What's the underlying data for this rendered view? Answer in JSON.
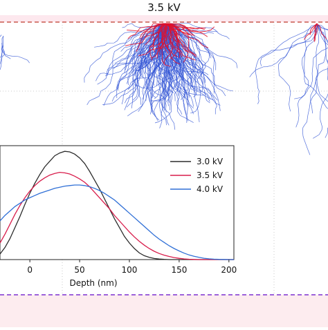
{
  "figure": {
    "voltage_title": "3.5 kV",
    "colors": {
      "background": "#ffffff",
      "top_band": "#fde8ee",
      "bottom_band": "#fdecef",
      "dashed_red": "#c0392b",
      "dashed_purple": "#7b2fd0",
      "grid": "#c8c8c8",
      "trajectory_blue": "#3557d6",
      "trajectory_red": "#e0102c"
    },
    "trajectory_panels": [
      "left-partial",
      "center",
      "right"
    ]
  },
  "chart_data": {
    "type": "line",
    "title": "",
    "xlabel": "Depth (nm)",
    "ylabel": "",
    "xlim": [
      -30,
      205
    ],
    "ylim": [
      0,
      1.0
    ],
    "xticks": [
      0,
      50,
      100,
      150,
      200
    ],
    "xtick_labels": [
      "0",
      "50",
      "100",
      "150",
      "200"
    ],
    "legend_position": "top-right",
    "series": [
      {
        "name": "3.0 kV",
        "color": "#2b2b2b",
        "x": [
          -30,
          -25,
          -20,
          -15,
          -10,
          -5,
          0,
          5,
          10,
          15,
          20,
          25,
          30,
          35,
          40,
          45,
          50,
          55,
          60,
          65,
          70,
          75,
          80,
          85,
          90,
          95,
          100,
          105,
          110,
          115,
          120,
          125,
          130,
          135,
          140,
          145,
          150,
          155,
          160,
          165,
          170,
          175,
          180,
          185,
          190,
          195,
          200,
          205
        ],
        "y": [
          0.05,
          0.11,
          0.19,
          0.29,
          0.39,
          0.5,
          0.6,
          0.69,
          0.77,
          0.84,
          0.89,
          0.94,
          0.965,
          0.98,
          0.975,
          0.955,
          0.92,
          0.87,
          0.8,
          0.72,
          0.64,
          0.55,
          0.46,
          0.37,
          0.29,
          0.21,
          0.15,
          0.1,
          0.06,
          0.035,
          0.02,
          0.01,
          0.005,
          0.002,
          0,
          0,
          0,
          0,
          0,
          0,
          0,
          0,
          0,
          0,
          0,
          0,
          0,
          0
        ]
      },
      {
        "name": "3.5 kV",
        "color": "#d81b4a",
        "x": [
          -30,
          -25,
          -20,
          -15,
          -10,
          -5,
          0,
          5,
          10,
          15,
          20,
          25,
          30,
          35,
          40,
          45,
          50,
          55,
          60,
          65,
          70,
          75,
          80,
          85,
          90,
          95,
          100,
          105,
          110,
          115,
          120,
          125,
          130,
          135,
          140,
          145,
          150,
          155,
          160,
          165,
          170,
          175,
          180,
          185,
          190,
          195,
          200,
          205
        ],
        "y": [
          0.15,
          0.23,
          0.32,
          0.41,
          0.49,
          0.56,
          0.62,
          0.67,
          0.71,
          0.74,
          0.765,
          0.78,
          0.79,
          0.785,
          0.775,
          0.755,
          0.73,
          0.7,
          0.66,
          0.61,
          0.56,
          0.51,
          0.46,
          0.4,
          0.35,
          0.3,
          0.25,
          0.205,
          0.165,
          0.13,
          0.1,
          0.075,
          0.055,
          0.04,
          0.028,
          0.018,
          0.011,
          0.006,
          0.003,
          0.001,
          0,
          0,
          0,
          0,
          0,
          0,
          0,
          0
        ]
      },
      {
        "name": "4.0 kV",
        "color": "#2f6fd6",
        "x": [
          -30,
          -25,
          -20,
          -15,
          -10,
          -5,
          0,
          5,
          10,
          15,
          20,
          25,
          30,
          35,
          40,
          45,
          50,
          55,
          60,
          65,
          70,
          75,
          80,
          85,
          90,
          95,
          100,
          105,
          110,
          115,
          120,
          125,
          130,
          135,
          140,
          145,
          150,
          155,
          160,
          165,
          170,
          175,
          180,
          185,
          190,
          195,
          200,
          205
        ],
        "y": [
          0.35,
          0.4,
          0.44,
          0.48,
          0.51,
          0.54,
          0.56,
          0.58,
          0.6,
          0.615,
          0.63,
          0.645,
          0.655,
          0.665,
          0.67,
          0.675,
          0.675,
          0.67,
          0.66,
          0.645,
          0.625,
          0.6,
          0.57,
          0.54,
          0.5,
          0.46,
          0.42,
          0.38,
          0.34,
          0.3,
          0.26,
          0.22,
          0.185,
          0.155,
          0.125,
          0.1,
          0.078,
          0.058,
          0.042,
          0.03,
          0.02,
          0.012,
          0.007,
          0.004,
          0.002,
          0.001,
          0,
          0
        ]
      }
    ]
  }
}
